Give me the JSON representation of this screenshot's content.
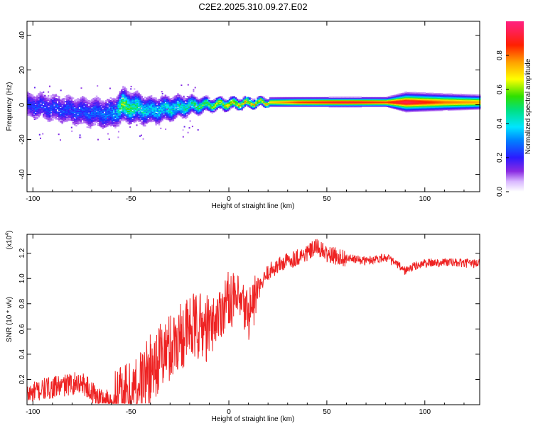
{
  "title": "C2E2.2025.310.09.27.E02",
  "colors": {
    "snr_line": "#ee2222",
    "background": "#ffffff"
  },
  "chart_data": [
    {
      "type": "heatmap",
      "name": "spectrogram",
      "xlabel": "Height of straight line (km)",
      "ylabel": "Frequency (Hz)",
      "xlim": [
        -103,
        128
      ],
      "ylim": [
        -50,
        48
      ],
      "xticks": [
        -100,
        -50,
        0,
        50,
        100
      ],
      "yticks": [
        -40,
        -20,
        0,
        20,
        40
      ],
      "colorbar": {
        "label": "Normalized spectral amplitude",
        "range": [
          0,
          1
        ],
        "ticks": [
          "0.0",
          "0.2",
          "0.4",
          "0.6",
          "0.8"
        ],
        "colormap": "rainbow (white-violet-blue-cyan-green-yellow-red-magenta)"
      },
      "band_centerline_hz": [
        {
          "x": -100,
          "f": 0
        },
        {
          "x": -80,
          "f": -3
        },
        {
          "x": -60,
          "f": -5
        },
        {
          "x": -55,
          "f": 0
        },
        {
          "x": -40,
          "f": -3
        },
        {
          "x": -20,
          "f": 0
        },
        {
          "x": 0,
          "f": 1
        },
        {
          "x": 20,
          "f": 2
        },
        {
          "x": 128,
          "f": 2
        }
      ],
      "band_halfwidth_hz": [
        {
          "x": -100,
          "w": 7
        },
        {
          "x": -60,
          "w": 8
        },
        {
          "x": -30,
          "w": 6
        },
        {
          "x": -10,
          "w": 3
        },
        {
          "x": 20,
          "w": 2
        },
        {
          "x": 80,
          "w": 2
        },
        {
          "x": 90,
          "w": 4
        },
        {
          "x": 128,
          "w": 3
        }
      ],
      "amplitude_profile": [
        {
          "x": -100,
          "a": 0.22
        },
        {
          "x": -70,
          "a": 0.25
        },
        {
          "x": -58,
          "a": 0.3
        },
        {
          "x": -55,
          "a": 0.55
        },
        {
          "x": -40,
          "a": 0.35
        },
        {
          "x": -20,
          "a": 0.45
        },
        {
          "x": 0,
          "a": 0.65
        },
        {
          "x": 20,
          "a": 0.7
        },
        {
          "x": 35,
          "a": 0.85
        },
        {
          "x": 60,
          "a": 0.92
        },
        {
          "x": 80,
          "a": 0.85
        },
        {
          "x": 90,
          "a": 0.95
        },
        {
          "x": 110,
          "a": 0.8
        },
        {
          "x": 128,
          "a": 0.75
        }
      ]
    },
    {
      "type": "line",
      "name": "snr",
      "xlabel": "Height of straight line (km)",
      "ylabel": "SNR (10 * v/v)",
      "yscale_label": "(x10",
      "yscale_exponent": "4",
      "xlim": [
        -103,
        128
      ],
      "ylim": [
        0,
        1.35
      ],
      "xticks": [
        -100,
        -50,
        0,
        50,
        100
      ],
      "yticks": [
        0.2,
        0.4,
        0.6,
        0.8,
        1.0,
        1.2
      ],
      "series": [
        {
          "name": "SNR",
          "x": [
            -103,
            -95,
            -85,
            -75,
            -70,
            -65,
            -60,
            -55,
            -50,
            -45,
            -40,
            -35,
            -30,
            -25,
            -20,
            -15,
            -10,
            -5,
            0,
            5,
            10,
            15,
            20,
            25,
            30,
            35,
            40,
            45,
            50,
            60,
            70,
            80,
            85,
            90,
            95,
            100,
            110,
            120,
            128
          ],
          "y": [
            0.08,
            0.12,
            0.15,
            0.18,
            0.1,
            0.05,
            0.03,
            0.04,
            0.08,
            0.18,
            0.28,
            0.38,
            0.45,
            0.55,
            0.6,
            0.62,
            0.6,
            0.72,
            0.85,
            0.8,
            0.72,
            0.9,
            1.05,
            1.1,
            1.14,
            1.17,
            1.2,
            1.25,
            1.19,
            1.16,
            1.14,
            1.17,
            1.12,
            1.06,
            1.1,
            1.12,
            1.13,
            1.12,
            1.12
          ]
        }
      ]
    }
  ]
}
